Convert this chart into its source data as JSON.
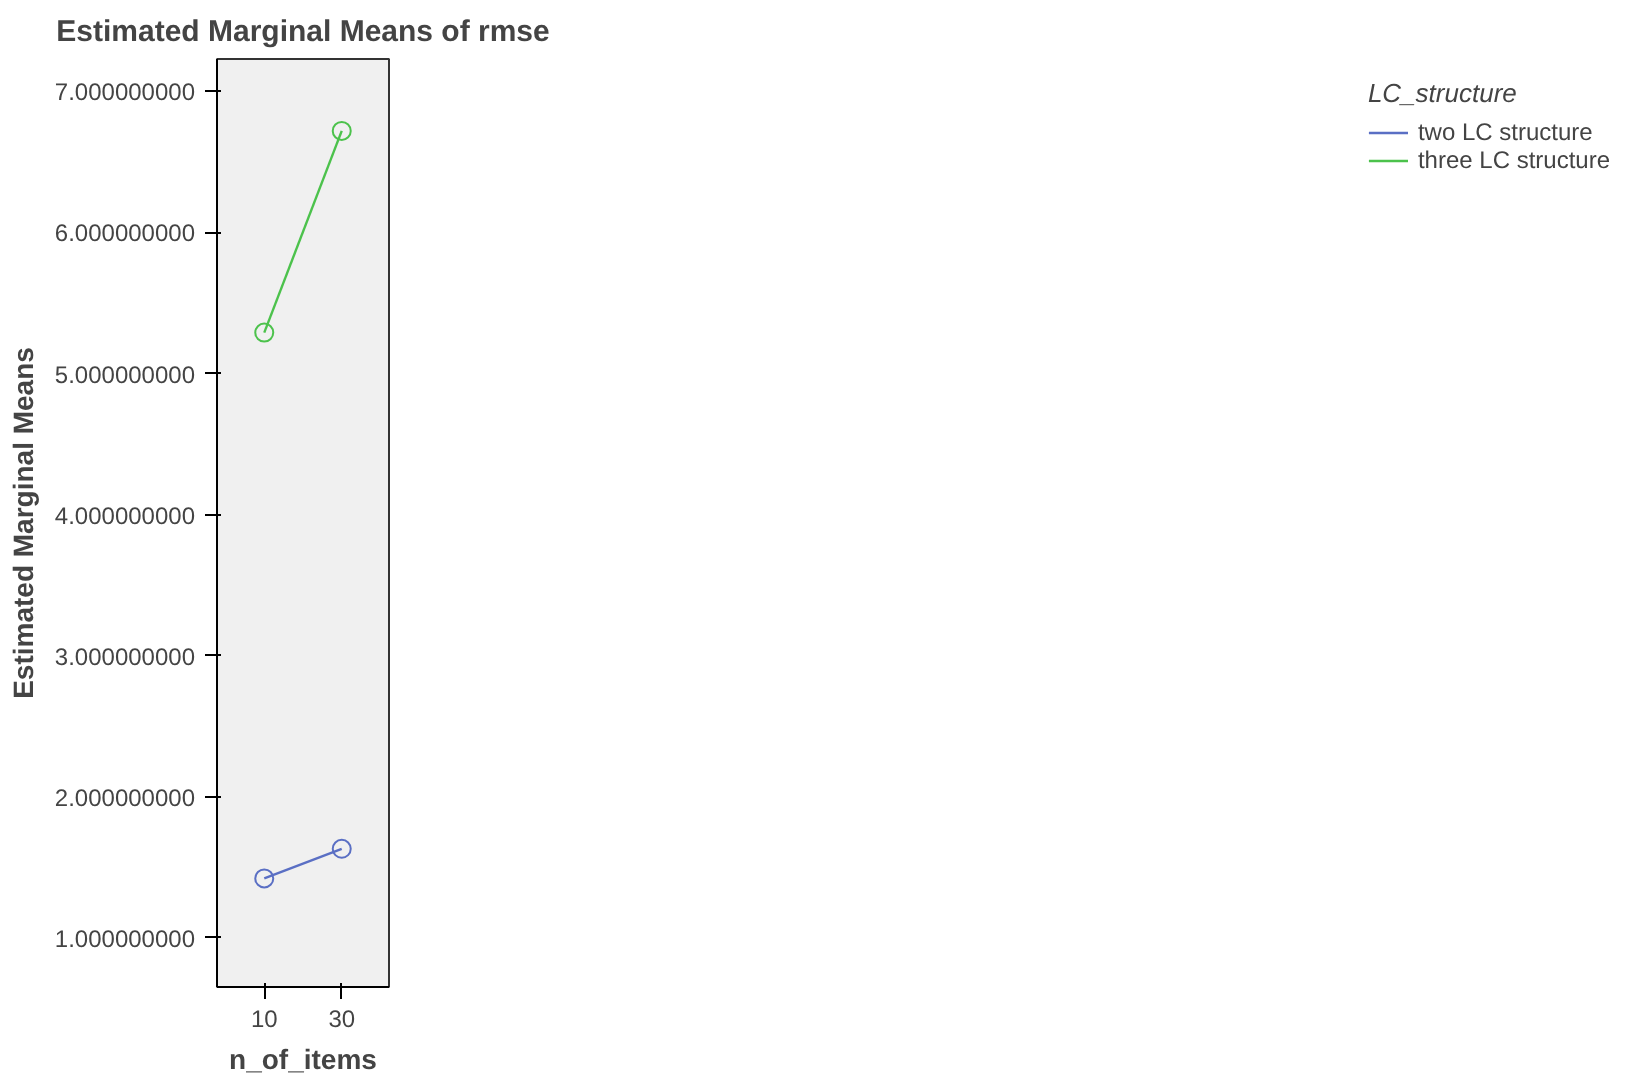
{
  "chart_data": {
    "type": "line",
    "title": "Estimated Marginal Means of rmse",
    "xlabel": "n_of_items",
    "ylabel": "Estimated Marginal Means",
    "legend_title": "LC_structure",
    "categories": [
      "10",
      "30"
    ],
    "series": [
      {
        "name": "two LC structure",
        "color": "#5a6fc4",
        "values": [
          1.42,
          1.63
        ]
      },
      {
        "name": "three LC structure",
        "color": "#4cc24c",
        "values": [
          5.29,
          6.72
        ]
      }
    ],
    "ylim": [
      0.65,
      7.23
    ],
    "yticks": [
      {
        "value": 1,
        "label": "1.000000000"
      },
      {
        "value": 2,
        "label": "2.000000000"
      },
      {
        "value": 3,
        "label": "3.000000000"
      },
      {
        "value": 4,
        "label": "4.000000000"
      },
      {
        "value": 5,
        "label": "5.000000000"
      },
      {
        "value": 6,
        "label": "6.000000000"
      },
      {
        "value": 7,
        "label": "7.000000000"
      }
    ],
    "marker": "circle",
    "line_style": "solid",
    "grid": false,
    "legend": "right"
  }
}
